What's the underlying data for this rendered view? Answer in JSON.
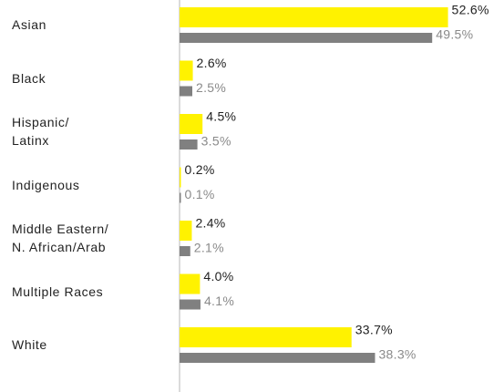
{
  "chart_data": {
    "type": "bar",
    "orientation": "horizontal",
    "categories": [
      "Asian",
      "Black",
      "Hispanic/\nLatinx",
      "Indigenous",
      "Middle Eastern/\nN. African/Arab",
      "Multiple Races",
      "White"
    ],
    "series": [
      {
        "color": "#fff200",
        "values": [
          52.6,
          2.6,
          4.5,
          0.2,
          2.4,
          4.0,
          33.7
        ],
        "value_labels": [
          "52.6%",
          "2.6%",
          "4.5%",
          "0.2%",
          "2.4%",
          "4.0%",
          "33.7%"
        ],
        "label_color": "#222222"
      },
      {
        "color": "#808080",
        "values": [
          49.5,
          2.5,
          3.5,
          0.1,
          2.1,
          4.1,
          38.3
        ],
        "value_labels": [
          "49.5%",
          "2.5%",
          "3.5%",
          "0.1%",
          "2.1%",
          "4.1%",
          "38.3%"
        ],
        "label_color": "#8a8a8a"
      }
    ]
  }
}
